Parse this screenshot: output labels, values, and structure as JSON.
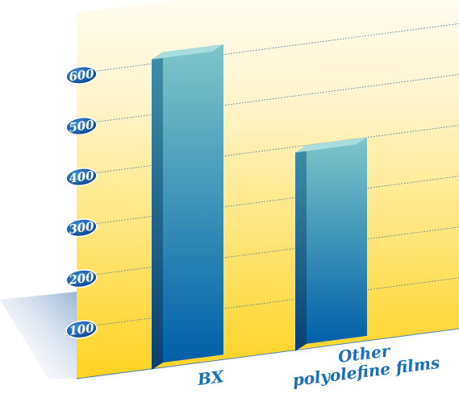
{
  "chart_data": {
    "type": "bar",
    "title": "",
    "xlabel": "",
    "ylabel": "",
    "categories": [
      "BX",
      "Other polyolefine films"
    ],
    "category_lines": [
      [
        "BX"
      ],
      [
        "Other",
        "polyolefine films"
      ]
    ],
    "values": [
      620,
      400
    ],
    "yticks": [
      100,
      200,
      300,
      400,
      500,
      600
    ],
    "ylim": [
      0,
      650
    ],
    "grid": true,
    "colors": {
      "background_top": "#fffbe8",
      "background_bottom": "#ffd320",
      "bar_top": "#7ec6c9",
      "bar_bottom": "#0060a8",
      "bar_side": "#0a4f85",
      "tick_oval": "#0a5bb0",
      "grid": "#2a6aa8",
      "label": "#1a6fb8"
    }
  }
}
